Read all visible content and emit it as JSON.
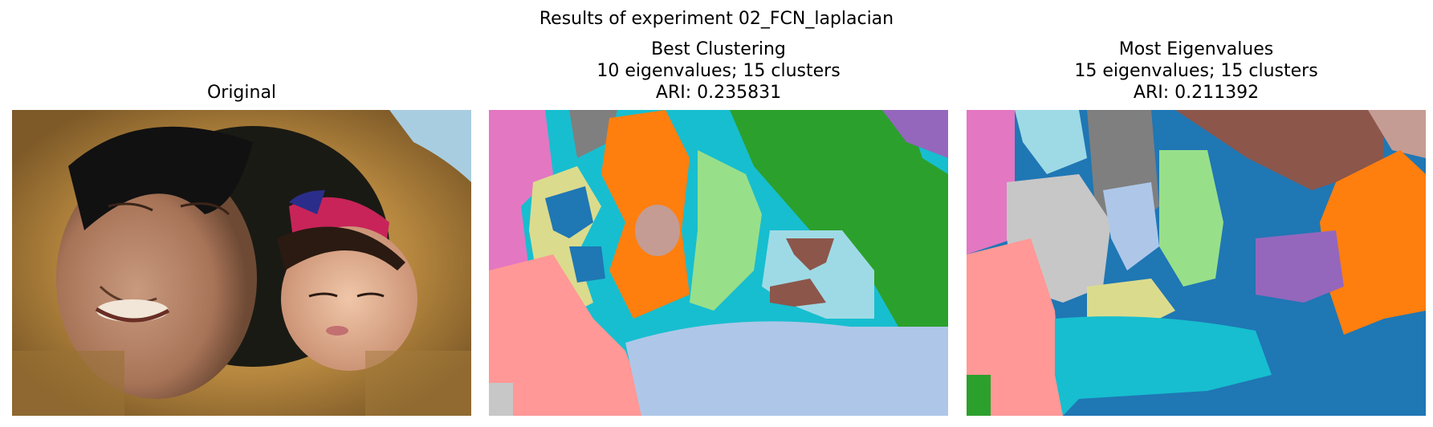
{
  "figure": {
    "suptitle": "Results of experiment 02_FCN_laplacian"
  },
  "panels": [
    {
      "id": "original",
      "title_lines": [
        "Original"
      ]
    },
    {
      "id": "best-clustering",
      "title_lines": [
        "Best Clustering",
        "10 eigenvalues; 15 clusters",
        "ARI: 0.235831"
      ]
    },
    {
      "id": "most-eigenvalues",
      "title_lines": [
        "Most Eigenvalues",
        "15 eigenvalues; 15 clusters",
        "ARI: 0.211392"
      ]
    }
  ],
  "palette": {
    "tab_blue": "#1f77b4",
    "tab_orange": "#ff7f0e",
    "tab_green": "#2ca02c",
    "tab_pink": "#e377c2",
    "tab_gray": "#7f7f7f",
    "tab_purple": "#9467bd",
    "tab_brown": "#8c564b",
    "tab_cyan": "#17becf",
    "light_green": "#98df8a",
    "light_salmon": "#ff9896",
    "light_blue": "#aec7e8",
    "light_cyan": "#9edae5",
    "khaki": "#dbdb8d",
    "light_gray": "#c7c7c7",
    "rose": "#c49c94"
  }
}
